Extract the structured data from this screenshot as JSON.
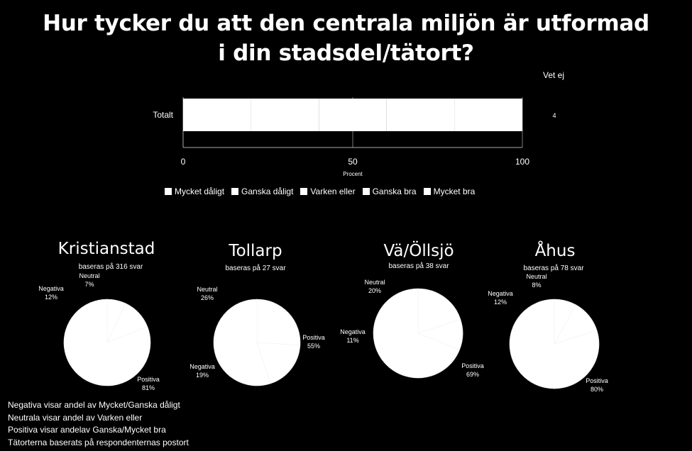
{
  "chart_data": [
    {
      "type": "bar",
      "title": "Hur tycker du att den centrala miljön är utformad i din stadsdel/tätort?",
      "title_lines": [
        "Hur tycker du att den centrala miljön är utformad",
        "i din stadsdel/tätort?"
      ],
      "orientation": "horizontal",
      "stacked": true,
      "categories": [
        "Totalt"
      ],
      "series": [
        {
          "name": "Mycket dåligt",
          "values": [
            null
          ]
        },
        {
          "name": "Ganska dåligt",
          "values": [
            null
          ]
        },
        {
          "name": "Varken eller",
          "values": [
            null
          ]
        },
        {
          "name": "Ganska bra",
          "values": [
            null
          ]
        },
        {
          "name": "Mycket bra",
          "values": [
            null
          ]
        }
      ],
      "total": 100,
      "xlabel": "Procent",
      "xlim": [
        0,
        100
      ],
      "xticks": [
        "0",
        "50",
        "100"
      ],
      "grid": true,
      "legend": "bottom",
      "side_label": {
        "header": "Vet ej",
        "value": "4"
      }
    },
    {
      "type": "pie",
      "title": "Kristianstad",
      "subtitle": "baseras på  316 svar",
      "slices": [
        {
          "label": "Neutral",
          "value": 7,
          "text": "7%"
        },
        {
          "label": "Negativa",
          "value": 12,
          "text": "12%"
        },
        {
          "label": "Positiva",
          "value": 81,
          "text": "81%"
        }
      ]
    },
    {
      "type": "pie",
      "title": "Tollarp",
      "subtitle": "baseras på  27 svar",
      "slices": [
        {
          "label": "Neutral",
          "value": 26,
          "text": "26%"
        },
        {
          "label": "Negativa",
          "value": 19,
          "text": "19%"
        },
        {
          "label": "Positiva",
          "value": 55,
          "text": "55%"
        }
      ]
    },
    {
      "type": "pie",
      "title": "Vä/Öllsjö",
      "subtitle": "baseras på  38 svar",
      "slices": [
        {
          "label": "Neutral",
          "value": 20,
          "text": "20%"
        },
        {
          "label": "Negativa",
          "value": 11,
          "text": "11%"
        },
        {
          "label": "Positiva",
          "value": 69,
          "text": "69%"
        }
      ]
    },
    {
      "type": "pie",
      "title": "Åhus",
      "subtitle": "baseras på  78 svar",
      "slices": [
        {
          "label": "Neutral",
          "value": 8,
          "text": "8%"
        },
        {
          "label": "Negativa",
          "value": 12,
          "text": "12%"
        },
        {
          "label": "Positiva",
          "value": 80,
          "text": "80%"
        }
      ]
    }
  ],
  "footnotes": [
    "Negativa visar andel av Mycket/Ganska dåligt",
    "Neutrala visar andel  av Varken eller",
    "Positiva visar andelav Ganska/Mycket bra",
    "Tätorterna baserats på respondenternas  postort"
  ],
  "colors": {
    "background": "#000000",
    "foreground": "#ffffff"
  }
}
